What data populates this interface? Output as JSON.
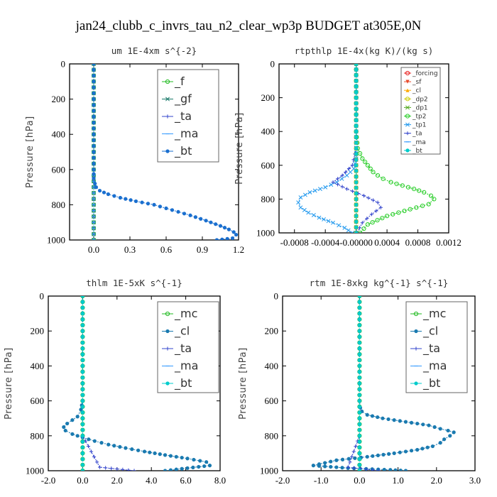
{
  "figure": {
    "title": "jan24_clubb_c_invrs_tau_n2_clear_wp3p  BUDGET at305E,0N"
  },
  "chart_data": [
    {
      "type": "line",
      "title": "um   1E-4xm s^{-2}",
      "ylabel": "Pressure [hPa]",
      "xlim": [
        -0.2,
        1.2
      ],
      "ylim": [
        1000,
        0
      ],
      "xticks": [
        "0.0",
        "0.3",
        "0.6",
        "0.9",
        "1.2"
      ],
      "xtick_values": [
        0.0,
        0.3,
        0.6,
        0.9,
        1.2
      ],
      "yticks": [
        0,
        200,
        400,
        600,
        800,
        1000
      ],
      "legend": "top-right",
      "series": [
        {
          "name": "_f",
          "color": "#22bb22",
          "marker": "circle-open",
          "x": [
            0,
            0,
            0,
            0,
            0,
            0,
            0,
            0,
            0,
            0,
            0
          ],
          "y": [
            0,
            100,
            200,
            300,
            400,
            500,
            600,
            700,
            800,
            900,
            1000
          ]
        },
        {
          "name": "_gf",
          "color": "#1a7a6a",
          "marker": "x",
          "x": [
            0,
            0,
            0,
            0,
            0,
            0,
            0,
            0,
            0,
            0,
            0
          ],
          "y": [
            0,
            100,
            200,
            300,
            400,
            500,
            600,
            700,
            800,
            900,
            1000
          ]
        },
        {
          "name": "_ta",
          "color": "#3344cc",
          "marker": "plus",
          "x": [
            0,
            0,
            0,
            0,
            0,
            0,
            0,
            0,
            0,
            0,
            0
          ],
          "y": [
            0,
            100,
            200,
            300,
            400,
            500,
            600,
            700,
            800,
            900,
            1000
          ]
        },
        {
          "name": "_ma",
          "color": "#3399ff",
          "marker": "dash",
          "x": [
            0,
            0,
            0,
            0,
            0,
            0,
            0,
            0,
            0,
            0,
            0
          ],
          "y": [
            0,
            100,
            200,
            300,
            400,
            500,
            600,
            700,
            800,
            900,
            1000
          ]
        },
        {
          "name": "_bt",
          "color": "#1a6fcf",
          "marker": "dot",
          "x": [
            0,
            0,
            0,
            0,
            0,
            0.01,
            0.02,
            0.05,
            0.12,
            0.22,
            0.35,
            0.5,
            0.65,
            0.8,
            0.93,
            1.05,
            1.12,
            1.16,
            1.18,
            1.15,
            1.02
          ],
          "y": [
            0,
            200,
            400,
            600,
            650,
            680,
            700,
            720,
            740,
            760,
            780,
            800,
            830,
            860,
            890,
            920,
            940,
            955,
            970,
            990,
            1000
          ]
        }
      ]
    },
    {
      "type": "line",
      "title": "rtpthlp   1E-4x(kg K)/(kg s)",
      "ylabel": "Pressure [hPa]",
      "xlim": [
        -0.001,
        0.0012
      ],
      "ylim": [
        1000,
        0
      ],
      "xticks": [
        "-0.0008",
        "-0.0004",
        "-0.00000",
        "0.0004",
        "0.0008",
        "0.0012"
      ],
      "xtick_values": [
        -0.0008,
        -0.0004,
        0.0,
        0.0004,
        0.0008,
        0.0012
      ],
      "yticks": [
        0,
        200,
        400,
        600,
        800,
        1000
      ],
      "legend": "top-right",
      "series": [
        {
          "name": "_forcing",
          "color": "#e8201f",
          "marker": "circle-open",
          "x": [
            0,
            0,
            0,
            0,
            0,
            0,
            0,
            0,
            0,
            0,
            0
          ],
          "y": [
            0,
            100,
            200,
            300,
            400,
            500,
            600,
            700,
            800,
            900,
            1000
          ]
        },
        {
          "name": "_sf",
          "color": "#e84a2a",
          "marker": "triangle-down",
          "x": [
            0,
            0,
            0,
            0,
            0,
            0,
            0,
            0,
            0,
            0,
            0
          ],
          "y": [
            0,
            100,
            200,
            300,
            400,
            500,
            600,
            700,
            800,
            900,
            1000
          ]
        },
        {
          "name": "_cl",
          "color": "#ffaa00",
          "marker": "triangle",
          "x": [
            0,
            0,
            0,
            0,
            0,
            0,
            0,
            0,
            0,
            0,
            0
          ],
          "y": [
            0,
            100,
            200,
            300,
            400,
            500,
            600,
            700,
            800,
            900,
            1000
          ]
        },
        {
          "name": "_dp2",
          "color": "#cccc00",
          "marker": "circle-open",
          "x": [
            0,
            0,
            0,
            0,
            0,
            0,
            0,
            0,
            0,
            0,
            0
          ],
          "y": [
            0,
            100,
            200,
            300,
            400,
            500,
            600,
            700,
            800,
            900,
            1000
          ]
        },
        {
          "name": "_dp1",
          "color": "#55aa22",
          "marker": "x",
          "x": [
            0,
            0,
            0,
            0,
            0,
            0,
            0,
            0,
            0,
            0,
            0
          ],
          "y": [
            0,
            100,
            200,
            300,
            400,
            500,
            600,
            700,
            800,
            900,
            1000
          ]
        },
        {
          "name": "_tp2",
          "color": "#22cc22",
          "marker": "circle-open",
          "x": [
            0,
            0,
            0,
            2e-05,
            8e-05,
            0.00015,
            0.00022,
            0.00028,
            0.00035,
            0.00045,
            0.0006,
            0.00075,
            0.00088,
            0.00097,
            0.00101,
            0.00094,
            0.0007,
            0.0004,
            0.00015,
            5e-05
          ],
          "y": [
            0,
            200,
            400,
            500,
            560,
            600,
            640,
            660,
            680,
            700,
            720,
            740,
            760,
            780,
            800,
            830,
            860,
            900,
            950,
            1000
          ]
        },
        {
          "name": "_tp1",
          "color": "#2299ee",
          "marker": "x",
          "x": [
            0,
            0,
            0,
            -3e-05,
            -0.00012,
            -0.00025,
            -0.0004,
            -0.0006,
            -0.00072,
            -0.00075,
            -0.00072,
            -0.00062,
            -0.00048,
            -0.0003,
            -0.00015,
            -5e-05
          ],
          "y": [
            0,
            400,
            560,
            620,
            660,
            700,
            730,
            760,
            790,
            820,
            850,
            880,
            910,
            940,
            970,
            1000
          ]
        },
        {
          "name": "_ta",
          "color": "#3344cc",
          "marker": "plus",
          "x": [
            0,
            0,
            -5e-05,
            -0.00018,
            -0.0003,
            -0.00012,
            0.0001,
            0.00028,
            0.00032,
            0.0002,
            8e-05,
            1e-05
          ],
          "y": [
            0,
            500,
            600,
            660,
            700,
            740,
            780,
            820,
            850,
            890,
            940,
            1000
          ]
        },
        {
          "name": "_ma",
          "color": "#3399ff",
          "marker": "dash",
          "x": [
            0,
            0,
            0,
            0,
            0,
            0,
            0,
            0,
            0,
            0,
            0
          ],
          "y": [
            0,
            100,
            200,
            300,
            400,
            500,
            600,
            700,
            800,
            900,
            1000
          ]
        },
        {
          "name": "_bt",
          "color": "#00cccc",
          "marker": "dot",
          "x": [
            0,
            0,
            0,
            0,
            0,
            0,
            0,
            0,
            0,
            0,
            0
          ],
          "y": [
            0,
            100,
            200,
            300,
            400,
            500,
            600,
            700,
            800,
            900,
            1000
          ]
        }
      ]
    },
    {
      "type": "line",
      "title": "thlm   1E-5xK s^{-1}",
      "ylabel": "Pressure [hPa]",
      "xlim": [
        -2.0,
        8.0
      ],
      "ylim": [
        1000,
        0
      ],
      "xticks": [
        "-2.0",
        "0.0",
        "2.0",
        "4.0",
        "6.0",
        "8.0"
      ],
      "xtick_values": [
        -2.0,
        0.0,
        2.0,
        4.0,
        6.0,
        8.0
      ],
      "yticks": [
        0,
        200,
        400,
        600,
        800,
        1000
      ],
      "legend": "top-right",
      "series": [
        {
          "name": "_mc",
          "color": "#22bb22",
          "marker": "circle-open",
          "x": [
            0,
            0,
            0,
            0,
            0,
            0,
            0,
            0,
            0,
            0,
            0
          ],
          "y": [
            0,
            100,
            200,
            300,
            400,
            500,
            600,
            700,
            800,
            900,
            1000
          ]
        },
        {
          "name": "_cl",
          "color": "#1a7ab0",
          "marker": "dot",
          "x": [
            0,
            0,
            0,
            0,
            -0.1,
            -0.3,
            -0.6,
            -0.9,
            -1.1,
            -1.0,
            -0.6,
            0.0,
            0.7,
            1.5,
            2.5,
            3.6,
            4.8,
            6.1,
            7.2,
            7.4,
            4.8
          ],
          "y": [
            0,
            200,
            400,
            600,
            650,
            690,
            710,
            730,
            750,
            770,
            790,
            810,
            830,
            850,
            870,
            890,
            910,
            930,
            950,
            970,
            1000
          ]
        },
        {
          "name": "_ta",
          "color": "#3344cc",
          "marker": "plus",
          "x": [
            0,
            0,
            0,
            0,
            0,
            0,
            0,
            0,
            0,
            1.0,
            3.0
          ],
          "y": [
            0,
            100,
            200,
            300,
            400,
            500,
            600,
            700,
            800,
            980,
            1000
          ]
        },
        {
          "name": "_ma",
          "color": "#3399ff",
          "marker": "dash",
          "x": [
            0,
            0,
            0,
            0,
            0,
            0,
            0,
            0,
            0,
            0,
            0
          ],
          "y": [
            0,
            100,
            200,
            300,
            400,
            500,
            600,
            700,
            800,
            900,
            1000
          ]
        },
        {
          "name": "_bt",
          "color": "#00cccc",
          "marker": "dot",
          "x": [
            0,
            0,
            0,
            0,
            0,
            0,
            0,
            0,
            0,
            0,
            0
          ],
          "y": [
            0,
            100,
            200,
            300,
            400,
            500,
            600,
            700,
            800,
            900,
            1000
          ]
        }
      ]
    },
    {
      "type": "line",
      "title": "rtm   1E-8xkg kg^{-1} s^{-1}",
      "ylabel": "Pressure [hPa]",
      "xlim": [
        -2.0,
        3.0
      ],
      "ylim": [
        1000,
        0
      ],
      "xticks": [
        "-2.0",
        "-1.0",
        "0.0",
        "1.0",
        "2.0",
        "3.0"
      ],
      "xtick_values": [
        -2.0,
        -1.0,
        0.0,
        1.0,
        2.0,
        3.0
      ],
      "yticks": [
        0,
        200,
        400,
        600,
        800,
        1000
      ],
      "legend": "top-right",
      "series": [
        {
          "name": "_mc",
          "color": "#22bb22",
          "marker": "circle-open",
          "x": [
            0,
            0,
            0,
            0,
            0,
            0,
            0,
            0,
            0,
            0,
            0
          ],
          "y": [
            0,
            100,
            200,
            300,
            400,
            500,
            600,
            700,
            800,
            900,
            1000
          ]
        },
        {
          "name": "_cl",
          "color": "#1a7ab0",
          "marker": "dot",
          "x": [
            0,
            0,
            0,
            0,
            0.02,
            0.06,
            0.2,
            0.6,
            1.2,
            1.8,
            2.1,
            2.3,
            2.45,
            2.35,
            2.2,
            2.1,
            1.9,
            1.5,
            0.9,
            0.2,
            -0.6,
            -1.2,
            -0.3,
            0.8,
            1.2
          ],
          "y": [
            0,
            200,
            400,
            600,
            640,
            660,
            680,
            700,
            720,
            740,
            760,
            770,
            780,
            800,
            820,
            840,
            860,
            880,
            900,
            920,
            940,
            970,
            985,
            995,
            1000
          ]
        },
        {
          "name": "_ta",
          "color": "#3344cc",
          "marker": "plus",
          "x": [
            0,
            0,
            0,
            0,
            0,
            0,
            0,
            0,
            0,
            -0.3,
            0.5
          ],
          "y": [
            0,
            100,
            200,
            300,
            400,
            500,
            600,
            700,
            800,
            980,
            1000
          ]
        },
        {
          "name": "_ma",
          "color": "#3399ff",
          "marker": "dash",
          "x": [
            0,
            0,
            0,
            0,
            0,
            0,
            0,
            0,
            0,
            0,
            0
          ],
          "y": [
            0,
            100,
            200,
            300,
            400,
            500,
            600,
            700,
            800,
            900,
            1000
          ]
        },
        {
          "name": "_bt",
          "color": "#00cccc",
          "marker": "dot",
          "x": [
            0,
            0,
            0,
            0,
            0,
            0,
            0,
            0,
            0,
            0,
            0
          ],
          "y": [
            0,
            100,
            200,
            300,
            400,
            500,
            600,
            700,
            800,
            900,
            1000
          ]
        }
      ]
    }
  ]
}
